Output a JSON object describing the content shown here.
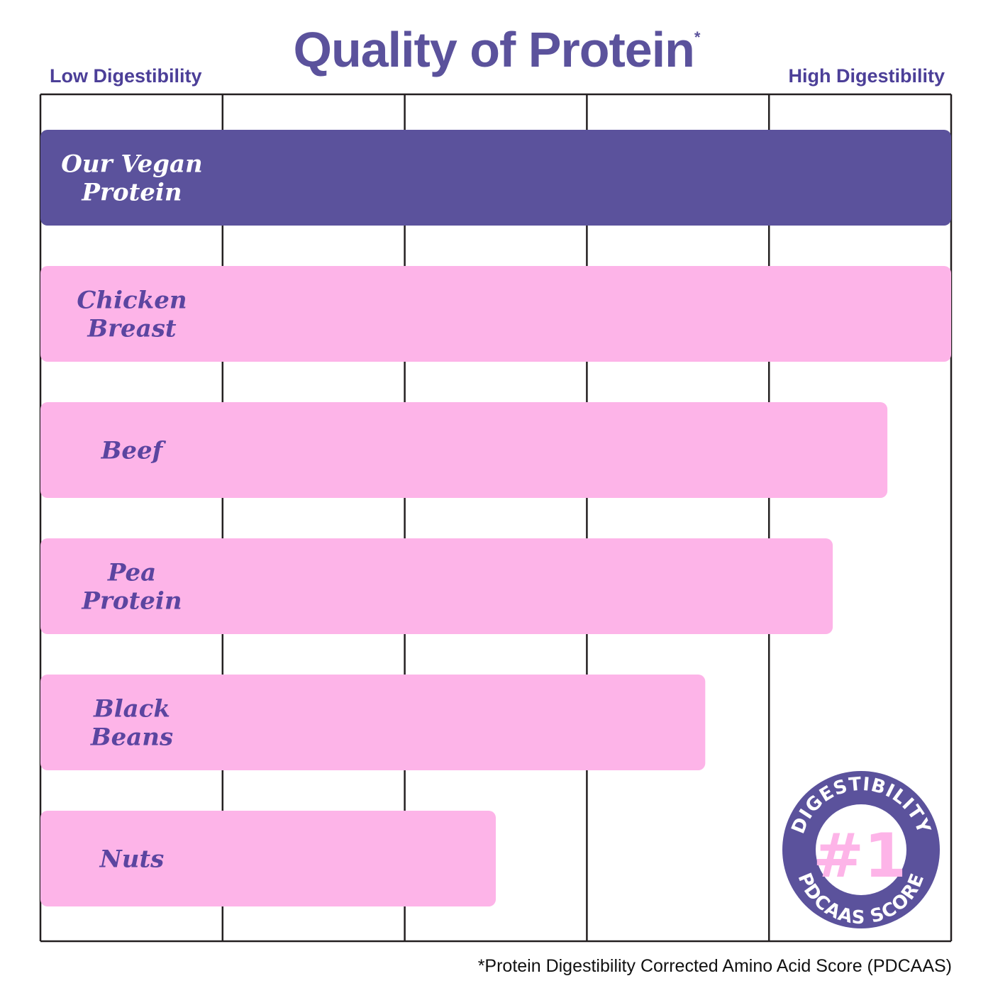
{
  "chart_data": {
    "type": "bar",
    "orientation": "horizontal",
    "title": "Quality of Protein",
    "title_marker": "*",
    "axis_low_label": "Low Digestibility",
    "axis_high_label": "High Digestibility",
    "xlim": [
      0,
      1
    ],
    "grid": true,
    "categories": [
      "Our Vegan Protein",
      "Chicken Breast",
      "Beef",
      "Pea Protein",
      "Black Beans",
      "Nuts"
    ],
    "label_lines": [
      [
        "Our Vegan",
        "Protein"
      ],
      [
        "Chicken",
        "Breast"
      ],
      [
        "Beef"
      ],
      [
        "Pea",
        "Protein"
      ],
      [
        "Black",
        "Beans"
      ],
      [
        "Nuts"
      ]
    ],
    "values": [
      1.0,
      1.0,
      0.93,
      0.87,
      0.73,
      0.5
    ],
    "highlight_index": 0,
    "footnote": "*Protein Digestibility Corrected Amino Acid Score (PDCAAS)"
  },
  "badge": {
    "top_text": "DIGESTIBILITY",
    "center_text": "#1",
    "bottom_text": "PDCAAS SCORE"
  },
  "colors": {
    "highlight": "#5b529c",
    "bar": "#fdb4e8",
    "label": "#5b45a0",
    "title": "#5b529c",
    "grid": "#231f20"
  }
}
